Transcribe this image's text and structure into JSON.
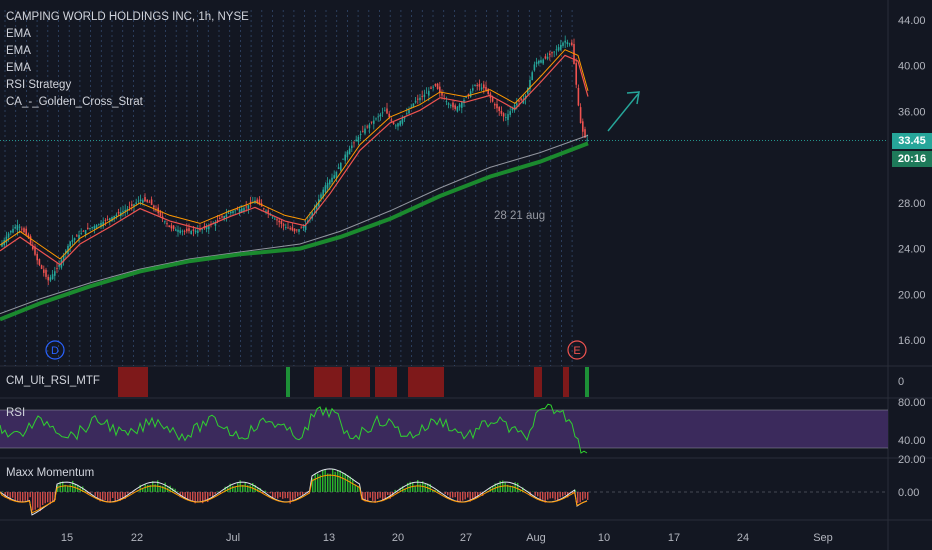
{
  "chart_data": {
    "type": "candlestick",
    "title": "CAMPING WORLD HOLDINGS INC, 1h, NYSE",
    "indicators": [
      "EMA",
      "EMA",
      "EMA",
      "RSI Strategy",
      "CA_-_Golden_Cross_Strat"
    ],
    "last_price": "33.45",
    "countdown": "20:16",
    "y_axis": {
      "ticks": [
        "44.00",
        "40.00",
        "36.00",
        "28.00",
        "24.00",
        "20.00",
        "16.00"
      ],
      "ylim": [
        12.5,
        45.5
      ]
    },
    "x_axis": {
      "ticks": [
        "15",
        "22",
        "Jul",
        "13",
        "20",
        "27",
        "Aug",
        "10",
        "17",
        "24",
        "Sep"
      ]
    },
    "annotation": "28 21 aug",
    "markers": [
      {
        "label": "D"
      },
      {
        "label": "E"
      }
    ],
    "price_path": [
      [
        0,
        24.2
      ],
      [
        10,
        25.5
      ],
      [
        18,
        26.1
      ],
      [
        28,
        25.0
      ],
      [
        38,
        22.8
      ],
      [
        48,
        21.2
      ],
      [
        58,
        22.4
      ],
      [
        70,
        24.6
      ],
      [
        85,
        25.6
      ],
      [
        100,
        26.2
      ],
      [
        115,
        26.9
      ],
      [
        130,
        27.6
      ],
      [
        140,
        28.3
      ],
      [
        150,
        28.0
      ],
      [
        160,
        26.9
      ],
      [
        170,
        25.8
      ],
      [
        185,
        25.5
      ],
      [
        200,
        25.6
      ],
      [
        215,
        26.3
      ],
      [
        230,
        27.2
      ],
      [
        245,
        27.6
      ],
      [
        255,
        28.2
      ],
      [
        265,
        27.4
      ],
      [
        275,
        26.6
      ],
      [
        285,
        25.9
      ],
      [
        295,
        25.5
      ],
      [
        305,
        26.0
      ],
      [
        315,
        27.6
      ],
      [
        325,
        29.5
      ],
      [
        335,
        30.5
      ],
      [
        345,
        32.2
      ],
      [
        355,
        33.4
      ],
      [
        365,
        34.5
      ],
      [
        375,
        35.3
      ],
      [
        385,
        36.1
      ],
      [
        395,
        34.7
      ],
      [
        405,
        35.6
      ],
      [
        415,
        36.9
      ],
      [
        425,
        37.5
      ],
      [
        435,
        38.3
      ],
      [
        445,
        37.0
      ],
      [
        455,
        36.2
      ],
      [
        465,
        37.1
      ],
      [
        475,
        38.3
      ],
      [
        485,
        38.0
      ],
      [
        495,
        36.5
      ],
      [
        505,
        35.4
      ],
      [
        515,
        36.6
      ],
      [
        525,
        37.2
      ],
      [
        535,
        40.3
      ],
      [
        545,
        40.6
      ],
      [
        555,
        41.3
      ],
      [
        565,
        42.2
      ],
      [
        572,
        41.8
      ],
      [
        576,
        38.5
      ],
      [
        580,
        35.2
      ],
      [
        584,
        33.8
      ],
      [
        588,
        33.45
      ]
    ],
    "ema_fast": [
      [
        0,
        23.8
      ],
      [
        20,
        25.0
      ],
      [
        40,
        23.8
      ],
      [
        60,
        22.6
      ],
      [
        80,
        24.4
      ],
      [
        110,
        25.9
      ],
      [
        140,
        27.5
      ],
      [
        170,
        26.4
      ],
      [
        200,
        25.7
      ],
      [
        230,
        26.8
      ],
      [
        255,
        27.6
      ],
      [
        285,
        26.4
      ],
      [
        305,
        26.0
      ],
      [
        330,
        28.8
      ],
      [
        360,
        32.6
      ],
      [
        390,
        35.0
      ],
      [
        420,
        36.1
      ],
      [
        440,
        37.2
      ],
      [
        465,
        36.8
      ],
      [
        490,
        37.4
      ],
      [
        515,
        36.2
      ],
      [
        540,
        38.5
      ],
      [
        565,
        40.9
      ],
      [
        578,
        40.4
      ],
      [
        588,
        37.3
      ]
    ],
    "ema_slow": [
      [
        0,
        17.8
      ],
      [
        40,
        19.2
      ],
      [
        90,
        20.7
      ],
      [
        140,
        22.0
      ],
      [
        190,
        22.9
      ],
      [
        240,
        23.5
      ],
      [
        300,
        24.0
      ],
      [
        340,
        25.0
      ],
      [
        390,
        26.6
      ],
      [
        440,
        28.6
      ],
      [
        490,
        30.3
      ],
      [
        540,
        31.6
      ],
      [
        588,
        33.2
      ]
    ],
    "ema_gray": [
      [
        0,
        18.3
      ],
      [
        40,
        19.6
      ],
      [
        90,
        21.0
      ],
      [
        140,
        22.2
      ],
      [
        190,
        23.1
      ],
      [
        240,
        23.7
      ],
      [
        300,
        24.4
      ],
      [
        340,
        25.5
      ],
      [
        390,
        27.3
      ],
      [
        440,
        29.3
      ],
      [
        490,
        31.1
      ],
      [
        540,
        32.4
      ],
      [
        588,
        33.9
      ]
    ],
    "panes": [
      {
        "name": "CM_Ult_RSI_MTF",
        "value_label": "0"
      },
      {
        "name": "RSI",
        "levels": [
          "80.00",
          "40.00"
        ]
      },
      {
        "name": "Maxx Momentum",
        "levels": [
          "20.00",
          "0.00"
        ]
      }
    ],
    "colors": {
      "background": "#131722",
      "up": "#26a69a",
      "down": "#ef5350",
      "ema_fast": "#ef5350",
      "ema_mid": "#ff9800",
      "ema_slow": "#1b8a2e",
      "ema_gray": "#b2b5be",
      "rsi": "#2fd12f",
      "rsi_band": "#3b2a5c",
      "grid_dash": "#4a6fa5",
      "arrow": "#26a69a"
    }
  }
}
